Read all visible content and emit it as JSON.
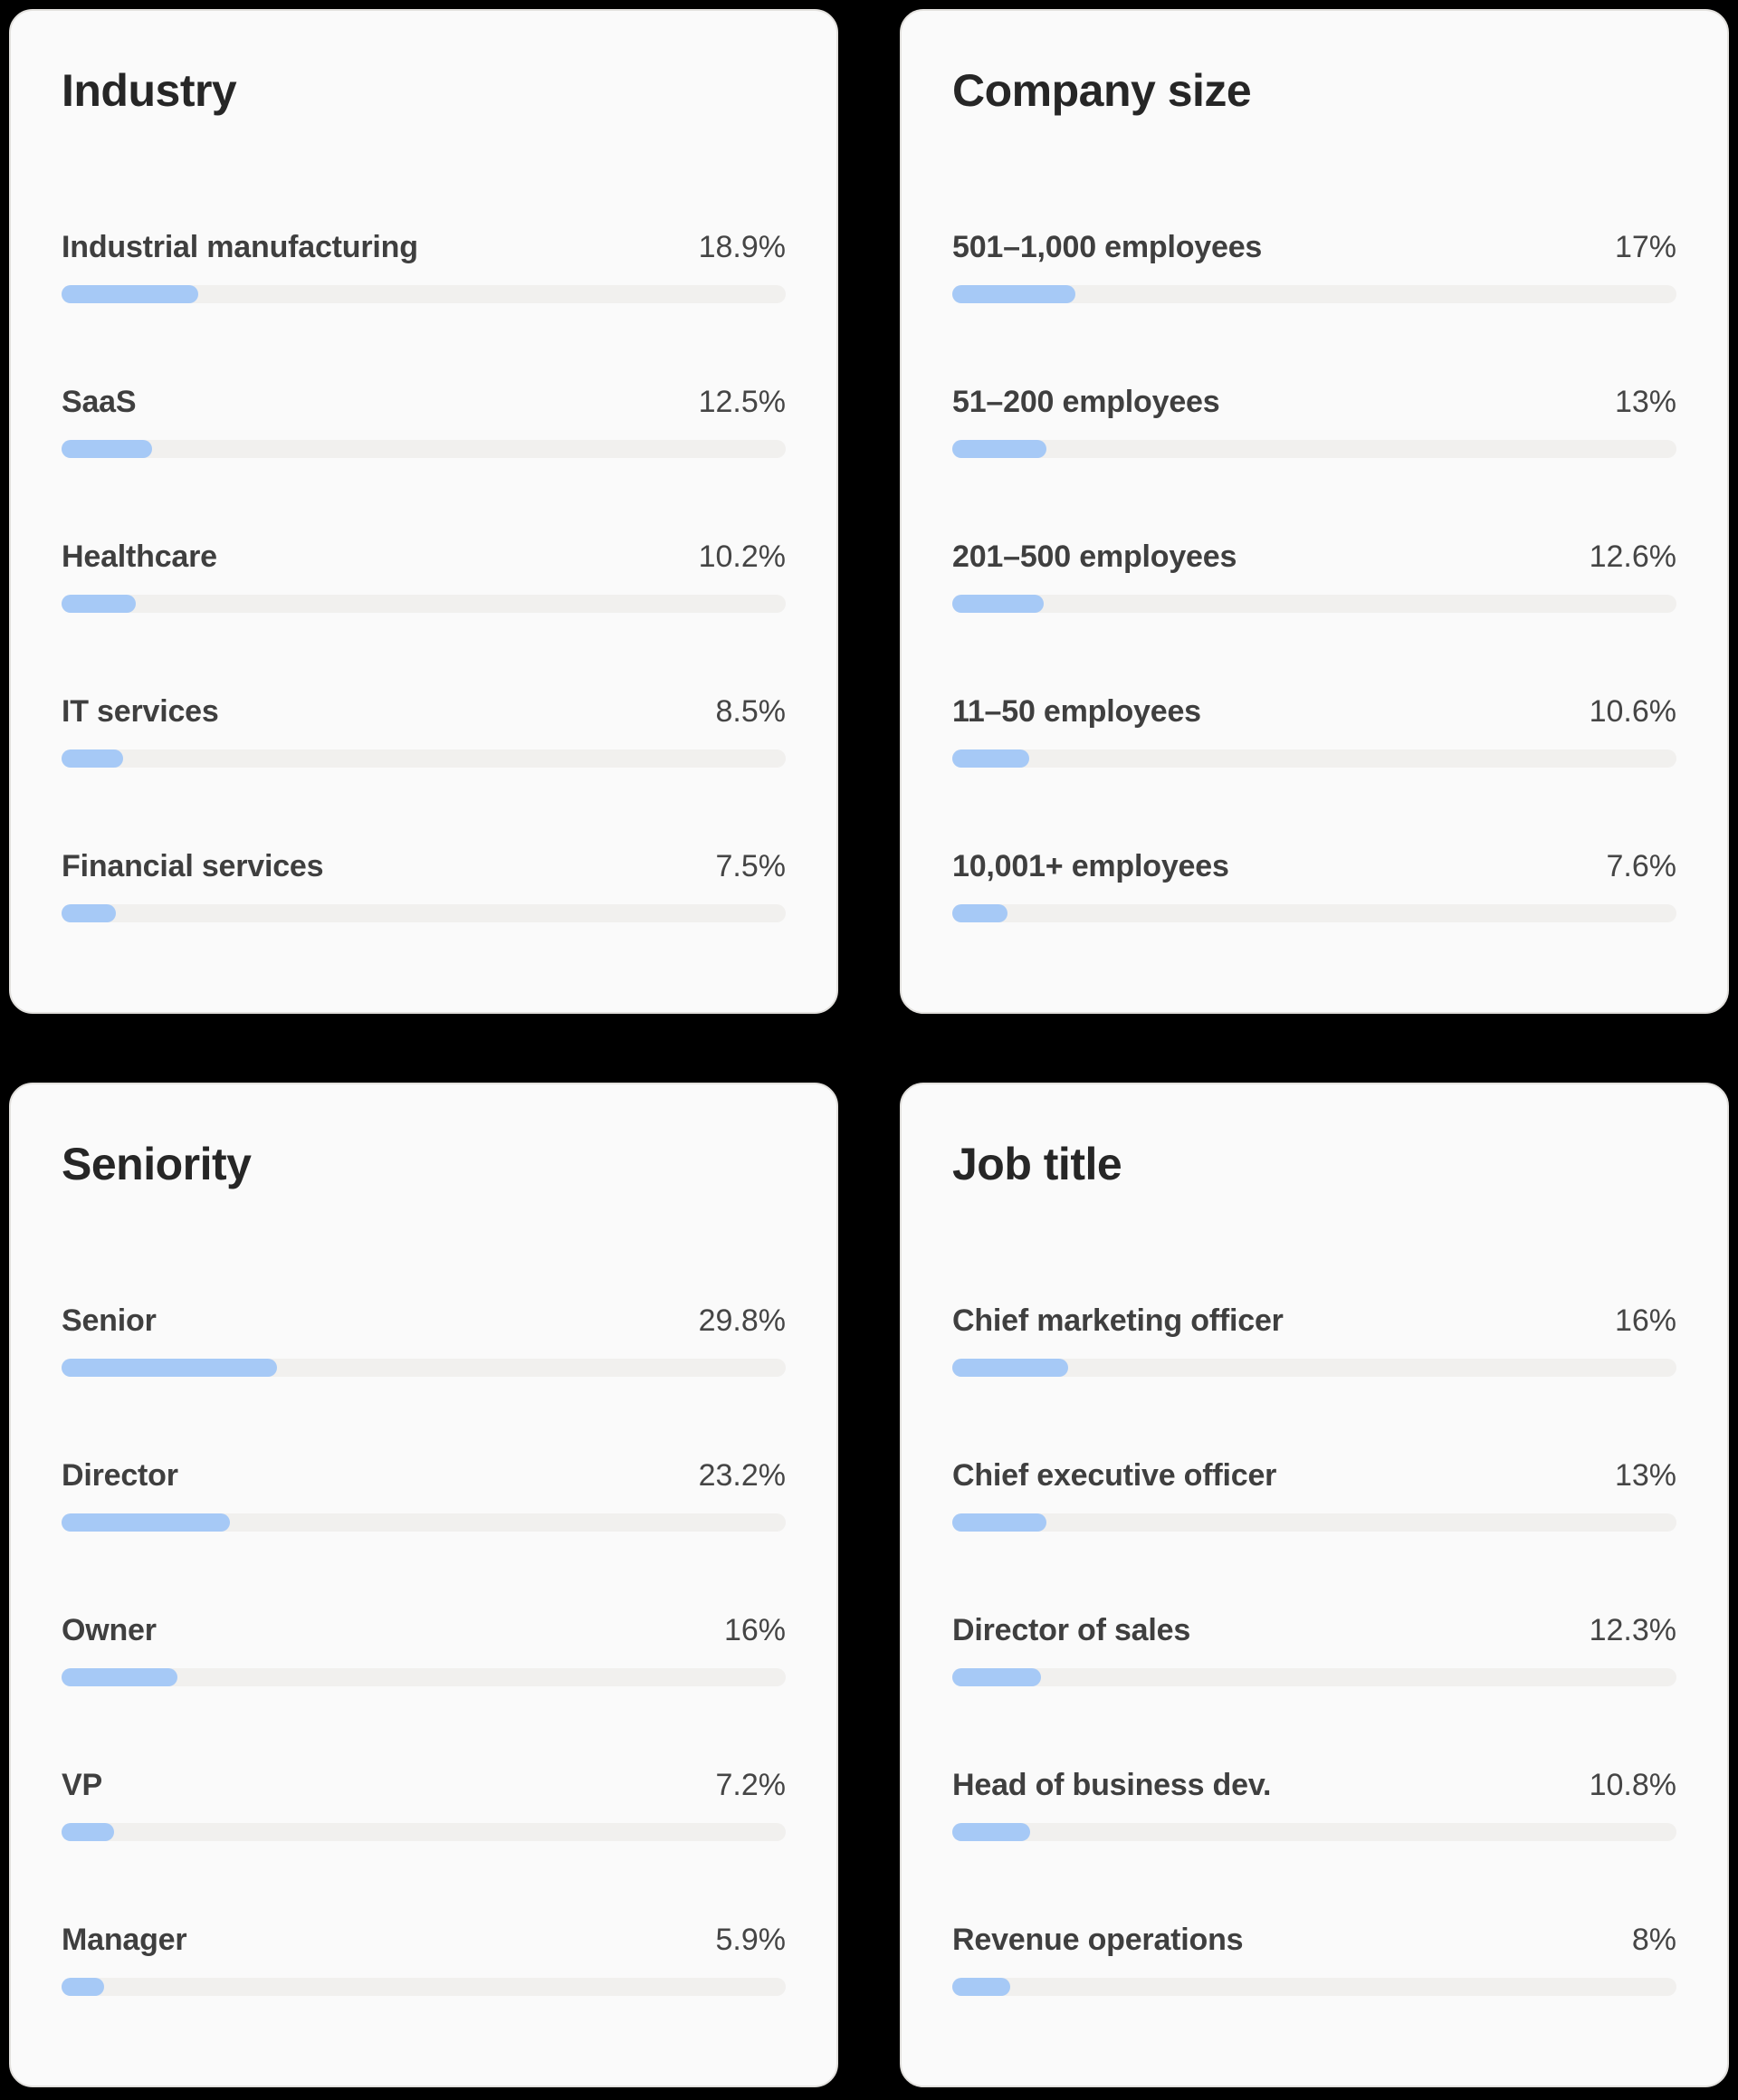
{
  "page": {
    "background": "#000000"
  },
  "colors": {
    "card_background": "#fafafa",
    "card_border": "#e3e1de",
    "title_text": "#262626",
    "label_text": "#3f3f3f",
    "value_text": "#454545",
    "bar_fill": "#a6c9f6",
    "bar_track": "#f1f0ee"
  },
  "chart_data": [
    {
      "id": "industry",
      "type": "bar",
      "orientation": "horizontal",
      "title": "Industry",
      "unit": "%",
      "xlim": [
        0,
        100
      ],
      "grid": false,
      "legend": false,
      "categories": [
        "Industrial manufacturing",
        "SaaS",
        "Healthcare",
        "IT services",
        "Financial services"
      ],
      "values": [
        18.9,
        12.5,
        10.2,
        8.5,
        7.5
      ],
      "value_labels": [
        "18.9%",
        "12.5%",
        "10.2%",
        "8.5%",
        "7.5%"
      ]
    },
    {
      "id": "company-size",
      "type": "bar",
      "orientation": "horizontal",
      "title": "Company size",
      "unit": "%",
      "xlim": [
        0,
        100
      ],
      "grid": false,
      "legend": false,
      "categories": [
        "501–1,000 employees",
        "51–200 employees",
        "201–500 employees",
        "11–50 employees",
        "10,001+ employees"
      ],
      "values": [
        17,
        13,
        12.6,
        10.6,
        7.6
      ],
      "value_labels": [
        "17%",
        "13%",
        "12.6%",
        "10.6%",
        "7.6%"
      ]
    },
    {
      "id": "seniority",
      "type": "bar",
      "orientation": "horizontal",
      "title": "Seniority",
      "unit": "%",
      "xlim": [
        0,
        100
      ],
      "grid": false,
      "legend": false,
      "categories": [
        "Senior",
        "Director",
        "Owner",
        "VP",
        "Manager"
      ],
      "values": [
        29.8,
        23.2,
        16,
        7.2,
        5.9
      ],
      "value_labels": [
        "29.8%",
        "23.2%",
        "16%",
        "7.2%",
        "5.9%"
      ]
    },
    {
      "id": "job-title",
      "type": "bar",
      "orientation": "horizontal",
      "title": "Job title",
      "unit": "%",
      "xlim": [
        0,
        100
      ],
      "grid": false,
      "legend": false,
      "categories": [
        "Chief marketing officer",
        "Chief executive officer",
        "Director of sales",
        "Head of business dev.",
        "Revenue operations"
      ],
      "values": [
        16,
        13,
        12.3,
        10.8,
        8
      ],
      "value_labels": [
        "16%",
        "13%",
        "12.3%",
        "10.8%",
        "8%"
      ]
    }
  ]
}
